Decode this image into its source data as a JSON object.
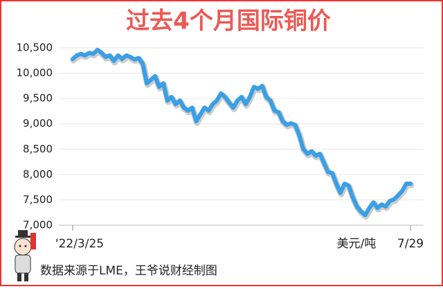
{
  "chart_data": {
    "type": "line",
    "title": "过去4个月国际铜价",
    "categories": [
      "'22/3/25",
      null,
      null,
      null,
      null,
      null,
      null,
      null,
      null,
      null,
      null,
      null,
      null,
      null,
      null,
      null,
      null,
      null,
      null,
      null,
      null,
      null,
      null,
      null,
      null,
      null,
      null,
      null,
      null,
      null,
      null,
      null,
      null,
      null,
      null,
      null,
      null,
      null,
      null,
      null,
      null,
      null,
      null,
      null,
      null,
      null,
      null,
      null,
      null,
      null,
      null,
      null,
      null,
      null,
      null,
      null,
      null,
      null,
      null,
      null,
      null,
      null,
      null,
      null,
      null,
      null,
      null,
      null,
      null,
      null,
      null,
      null,
      null,
      null,
      null,
      null,
      null,
      null,
      null,
      null,
      null,
      null,
      "7/29"
    ],
    "series": [
      {
        "name": "铜价",
        "color": "#3a9fe6",
        "values": [
          10280,
          10350,
          10380,
          10350,
          10400,
          10380,
          10460,
          10400,
          10320,
          10350,
          10240,
          10350,
          10280,
          10350,
          10320,
          10270,
          10300,
          10190,
          9800,
          9870,
          9940,
          9730,
          9800,
          9460,
          9530,
          9390,
          9460,
          9320,
          9260,
          9320,
          9050,
          9190,
          9320,
          9260,
          9390,
          9460,
          9600,
          9530,
          9420,
          9320,
          9460,
          9530,
          9390,
          9530,
          9730,
          9690,
          9750,
          9530,
          9460,
          9260,
          9230,
          9050,
          8980,
          9010,
          8980,
          8780,
          8500,
          8410,
          8460,
          8370,
          8410,
          8230,
          8050,
          8030,
          7820,
          7640,
          7820,
          7780,
          7550,
          7370,
          7270,
          7200,
          7340,
          7450,
          7340,
          7410,
          7370,
          7480,
          7510,
          7590,
          7680,
          7820,
          7820
        ]
      }
    ],
    "ylim": [
      7000,
      10500
    ],
    "yticks": [
      {
        "value": 7000,
        "label": "7,000"
      },
      {
        "value": 7500,
        "label": "7,500"
      },
      {
        "value": 8000,
        "label": "8,000"
      },
      {
        "value": 8500,
        "label": "8,500"
      },
      {
        "value": 9000,
        "label": "9,000"
      },
      {
        "value": 9500,
        "label": "9,500"
      },
      {
        "value": 10000,
        "label": "10,000"
      },
      {
        "value": 10500,
        "label": "10,500"
      }
    ],
    "grid": true,
    "unit": "美元/吨",
    "source": "数据来源于LME，王爷说财经制图"
  }
}
